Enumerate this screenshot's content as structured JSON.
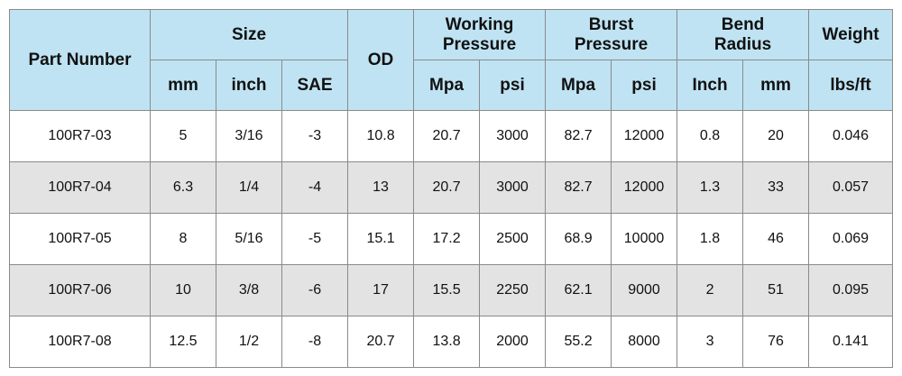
{
  "headers": {
    "part_number": "Part Number",
    "size": "Size",
    "od": "OD",
    "working_pressure_line1": "Working",
    "working_pressure_line2": "Pressure",
    "burst_pressure_line1": "Burst",
    "burst_pressure_line2": "Pressure",
    "bend_radius_line1": "Bend",
    "bend_radius_line2": "Radius",
    "weight": "Weight",
    "sub": {
      "mm": "mm",
      "inch": "inch",
      "sae": "SAE",
      "wp_mpa": "Mpa",
      "wp_psi": "psi",
      "bp_mpa": "Mpa",
      "bp_psi": "psi",
      "br_inch": "Inch",
      "br_mm": "mm",
      "lbs_ft": "lbs/ft"
    }
  },
  "rows": [
    [
      "100R7-03",
      "5",
      "3/16",
      "-3",
      "10.8",
      "20.7",
      "3000",
      "82.7",
      "12000",
      "0.8",
      "20",
      "0.046"
    ],
    [
      "100R7-04",
      "6.3",
      "1/4",
      "-4",
      "13",
      "20.7",
      "3000",
      "82.7",
      "12000",
      "1.3",
      "33",
      "0.057"
    ],
    [
      "100R7-05",
      "8",
      "5/16",
      "-5",
      "15.1",
      "17.2",
      "2500",
      "68.9",
      "10000",
      "1.8",
      "46",
      "0.069"
    ],
    [
      "100R7-06",
      "10",
      "3/8",
      "-6",
      "17",
      "15.5",
      "2250",
      "62.1",
      "9000",
      "2",
      "51",
      "0.095"
    ],
    [
      "100R7-08",
      "12.5",
      "1/2",
      "-8",
      "20.7",
      "13.8",
      "2000",
      "55.2",
      "8000",
      "3",
      "76",
      "0.141"
    ]
  ],
  "colors": {
    "header_bg": "#bfe3f3",
    "shaded_row_bg": "#e3e3e3",
    "border": "#8a8a8a"
  }
}
